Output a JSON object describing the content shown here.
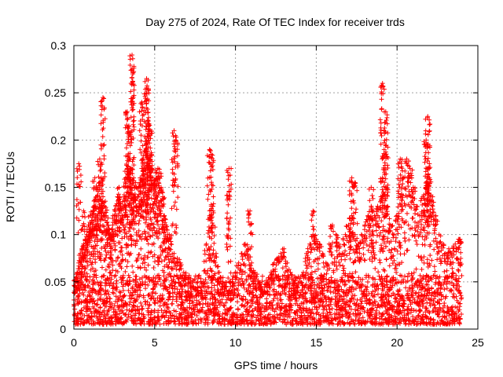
{
  "chart_data": {
    "type": "scatter",
    "title": "Day 275 of 2024, Rate Of TEC Index for receiver trds",
    "xlabel": "GPS time / hours",
    "ylabel": "ROTI / TECUs",
    "xlim": [
      0,
      25
    ],
    "ylim": [
      0,
      0.3
    ],
    "xticks": [
      0,
      5,
      10,
      15,
      20,
      25
    ],
    "xtick_labels": [
      "0",
      "5",
      "10",
      "15",
      "20",
      "25"
    ],
    "yticks": [
      0,
      0.05,
      0.1,
      0.15,
      0.2,
      0.25,
      0.3
    ],
    "ytick_labels": [
      "0",
      "0.05",
      "0.1",
      "0.15",
      "0.2",
      "0.25",
      "0.3"
    ],
    "grid": true,
    "marker": "+",
    "color": "#ff0000",
    "series": [
      {
        "name": "ROTI",
        "x": [
          0.1,
          0.2,
          0.3,
          0.4,
          0.5,
          0.6,
          0.7,
          0.8,
          0.9,
          1.0,
          1.1,
          1.2,
          1.3,
          1.4,
          1.5,
          1.6,
          1.7,
          1.8,
          1.9,
          2.0,
          2.1,
          2.2,
          2.3,
          2.4,
          2.5,
          2.6,
          2.7,
          2.8,
          2.9,
          3.0,
          3.1,
          3.2,
          3.3,
          3.4,
          3.5,
          3.6,
          3.7,
          3.8,
          3.9,
          4.0,
          4.1,
          4.2,
          4.3,
          4.4,
          4.5,
          4.6,
          4.7,
          4.8,
          4.9,
          5.0,
          5.1,
          5.2,
          5.3,
          5.4,
          5.5,
          5.6,
          5.7,
          5.8,
          5.9,
          6.0,
          6.2,
          6.4,
          6.6,
          6.8,
          7.0,
          7.2,
          7.4,
          7.6,
          7.8,
          8.0,
          8.2,
          8.4,
          8.5,
          8.6,
          8.8,
          9.0,
          9.2,
          9.4,
          9.6,
          9.8,
          10.0,
          10.2,
          10.4,
          10.6,
          10.8,
          11.0,
          11.2,
          11.4,
          11.6,
          11.8,
          12.0,
          12.2,
          12.4,
          12.6,
          12.8,
          13.0,
          13.2,
          13.4,
          13.6,
          13.8,
          14.0,
          14.2,
          14.4,
          14.6,
          14.8,
          15.0,
          15.2,
          15.4,
          15.6,
          15.8,
          16.0,
          16.2,
          16.4,
          16.6,
          16.8,
          17.0,
          17.2,
          17.4,
          17.6,
          17.8,
          18.0,
          18.2,
          18.4,
          18.6,
          18.8,
          19.0,
          19.1,
          19.2,
          19.3,
          19.4,
          19.6,
          19.8,
          20.0,
          20.2,
          20.4,
          20.6,
          20.8,
          21.0,
          21.2,
          21.4,
          21.6,
          21.8,
          21.9,
          22.0,
          22.2,
          22.4,
          22.6,
          22.8,
          23.0,
          23.2,
          23.4,
          23.6,
          23.8,
          0.3,
          1.3,
          1.6,
          3.3,
          3.6,
          4.2,
          4.5,
          4.7,
          6.2,
          8.4,
          9.6,
          17.2,
          19.1,
          20.2,
          21.9,
          3.6,
          4.5,
          1.8,
          19.3,
          21.8,
          3.4,
          4.6,
          0.6,
          6.3,
          8.5,
          9.6,
          10.9,
          14.8,
          17.4,
          18.4,
          22.0,
          23.9
        ],
        "y": [
          0.045,
          0.06,
          0.07,
          0.08,
          0.085,
          0.09,
          0.095,
          0.1,
          0.11,
          0.12,
          0.115,
          0.125,
          0.13,
          0.14,
          0.15,
          0.155,
          0.16,
          0.14,
          0.13,
          0.12,
          0.11,
          0.105,
          0.1,
          0.11,
          0.12,
          0.13,
          0.14,
          0.15,
          0.13,
          0.12,
          0.14,
          0.16,
          0.17,
          0.18,
          0.17,
          0.15,
          0.16,
          0.14,
          0.13,
          0.15,
          0.16,
          0.17,
          0.18,
          0.17,
          0.19,
          0.2,
          0.18,
          0.17,
          0.16,
          0.15,
          0.16,
          0.17,
          0.165,
          0.15,
          0.14,
          0.12,
          0.11,
          0.1,
          0.1,
          0.09,
          0.08,
          0.075,
          0.07,
          0.06,
          0.055,
          0.05,
          0.045,
          0.04,
          0.045,
          0.05,
          0.09,
          0.12,
          0.13,
          0.11,
          0.08,
          0.06,
          0.05,
          0.045,
          0.04,
          0.05,
          0.06,
          0.07,
          0.08,
          0.09,
          0.085,
          0.07,
          0.06,
          0.05,
          0.045,
          0.04,
          0.05,
          0.06,
          0.07,
          0.075,
          0.08,
          0.085,
          0.07,
          0.06,
          0.05,
          0.045,
          0.05,
          0.06,
          0.08,
          0.09,
          0.1,
          0.095,
          0.09,
          0.08,
          0.07,
          0.09,
          0.11,
          0.1,
          0.09,
          0.08,
          0.1,
          0.11,
          0.12,
          0.1,
          0.09,
          0.1,
          0.11,
          0.12,
          0.13,
          0.12,
          0.13,
          0.14,
          0.16,
          0.19,
          0.15,
          0.13,
          0.11,
          0.1,
          0.12,
          0.14,
          0.16,
          0.18,
          0.17,
          0.15,
          0.13,
          0.12,
          0.14,
          0.15,
          0.16,
          0.16,
          0.14,
          0.12,
          0.1,
          0.09,
          0.08,
          0.085,
          0.08,
          0.09,
          0.095,
          0.175,
          0.16,
          0.18,
          0.23,
          0.29,
          0.24,
          0.265,
          0.21,
          0.21,
          0.19,
          0.17,
          0.16,
          0.26,
          0.18,
          0.225,
          0.275,
          0.255,
          0.245,
          0.23,
          0.2,
          0.215,
          0.22,
          0.125,
          0.2,
          0.185,
          0.145,
          0.125,
          0.125,
          0.155,
          0.15,
          0.175,
          0.095
        ]
      }
    ],
    "noise_floor": {
      "description": "dense band of points across full time range",
      "y_min": 0.005,
      "y_max": 0.045,
      "x_range": [
        0,
        24
      ]
    }
  }
}
